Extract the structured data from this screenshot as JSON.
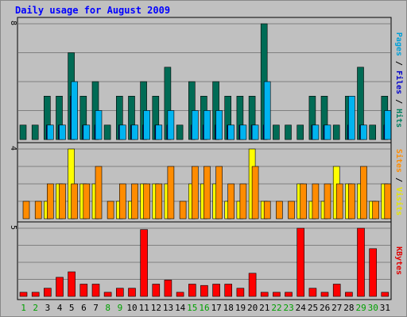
{
  "chart_data": {
    "type": "bar",
    "title": "Daily usage for August 2009",
    "days": [
      "1",
      "2",
      "3",
      "4",
      "5",
      "6",
      "7",
      "8",
      "9",
      "10",
      "11",
      "12",
      "13",
      "14",
      "15",
      "16",
      "17",
      "18",
      "19",
      "20",
      "21",
      "22",
      "23",
      "24",
      "25",
      "26",
      "27",
      "28",
      "29",
      "30",
      "31"
    ],
    "weekend_days": [
      "1",
      "2",
      "8",
      "9",
      "15",
      "16",
      "22",
      "23",
      "29",
      "30"
    ],
    "panels": [
      {
        "id": "hits-files-pages",
        "max_label": "8",
        "ylim": [
          0,
          8
        ],
        "side_label_parts": [
          {
            "text": "Pages",
            "color": "#00a0d8"
          },
          {
            "text": " / ",
            "color": "#000000"
          },
          {
            "text": "Files",
            "color": "#0000cc"
          },
          {
            "text": " / ",
            "color": "#000000"
          },
          {
            "text": "Hits",
            "color": "#008060"
          }
        ],
        "series": [
          {
            "name": "Hits",
            "color": "#006b55",
            "values": [
              1,
              1,
              3,
              3,
              6,
              3,
              4,
              1,
              3,
              3,
              4,
              3,
              5,
              1,
              4,
              3,
              4,
              3,
              3,
              3,
              8,
              1,
              1,
              1,
              3,
              3,
              1,
              3,
              5,
              1,
              3
            ]
          },
          {
            "name": "Files",
            "color": "#0000a0",
            "values": [
              0,
              0,
              1,
              1,
              3,
              1,
              1,
              0,
              1,
              1,
              1,
              1,
              1,
              0,
              1,
              1,
              1,
              1,
              1,
              1,
              1,
              0,
              0,
              0,
              1,
              1,
              0,
              1,
              1,
              0,
              1
            ]
          },
          {
            "name": "Pages",
            "color": "#00b4f0",
            "values": [
              0,
              0,
              1,
              1,
              4,
              1,
              2,
              0,
              1,
              1,
              2,
              1,
              2,
              0,
              2,
              2,
              2,
              1,
              1,
              1,
              4,
              0,
              0,
              0,
              1,
              1,
              0,
              3,
              1,
              0,
              2
            ]
          }
        ]
      },
      {
        "id": "visits-sites",
        "max_label": "4",
        "ylim": [
          0,
          4
        ],
        "side_label_parts": [
          {
            "text": "Sites",
            "color": "#ff8c00"
          },
          {
            "text": " / ",
            "color": "#000000"
          },
          {
            "text": "Visits",
            "color": "#e6e600"
          }
        ],
        "series": [
          {
            "name": "Visits",
            "color": "#ffff00",
            "values": [
              0,
              0,
              1,
              2,
              4,
              2,
              2,
              0,
              1,
              1,
              2,
              2,
              2,
              0,
              2,
              2,
              2,
              1,
              1,
              4,
              1,
              0,
              0,
              2,
              1,
              1,
              3,
              2,
              2,
              1,
              2
            ]
          },
          {
            "name": "Sites",
            "color": "#ff8c00",
            "values": [
              1,
              1,
              2,
              2,
              2,
              2,
              3,
              1,
              2,
              2,
              2,
              2,
              3,
              1,
              3,
              3,
              3,
              2,
              2,
              3,
              1,
              1,
              1,
              2,
              2,
              2,
              2,
              2,
              3,
              1,
              2
            ]
          }
        ]
      },
      {
        "id": "kbytes",
        "max_label": "5",
        "ylim": [
          0,
          5
        ],
        "side_label_parts": [
          {
            "text": "KBytes",
            "color": "#e00000"
          }
        ],
        "series": [
          {
            "name": "KBytes",
            "color": "#ff0000",
            "values": [
              0.3,
              0.3,
              0.6,
              1.4,
              1.8,
              0.9,
              0.9,
              0.3,
              0.6,
              0.6,
              4.9,
              0.9,
              1.2,
              0.3,
              0.9,
              0.8,
              0.9,
              0.9,
              0.6,
              1.7,
              0.3,
              0.3,
              0.3,
              5,
              0.6,
              0.3,
              0.9,
              0.3,
              5,
              3.5,
              0.3
            ]
          }
        ]
      }
    ],
    "colors": {
      "background": "#c0c0c0",
      "border": "#000000",
      "grid": "#808080",
      "title": "#0000ff",
      "day_weekday": "#000000",
      "day_weekend": "#00a000"
    }
  }
}
